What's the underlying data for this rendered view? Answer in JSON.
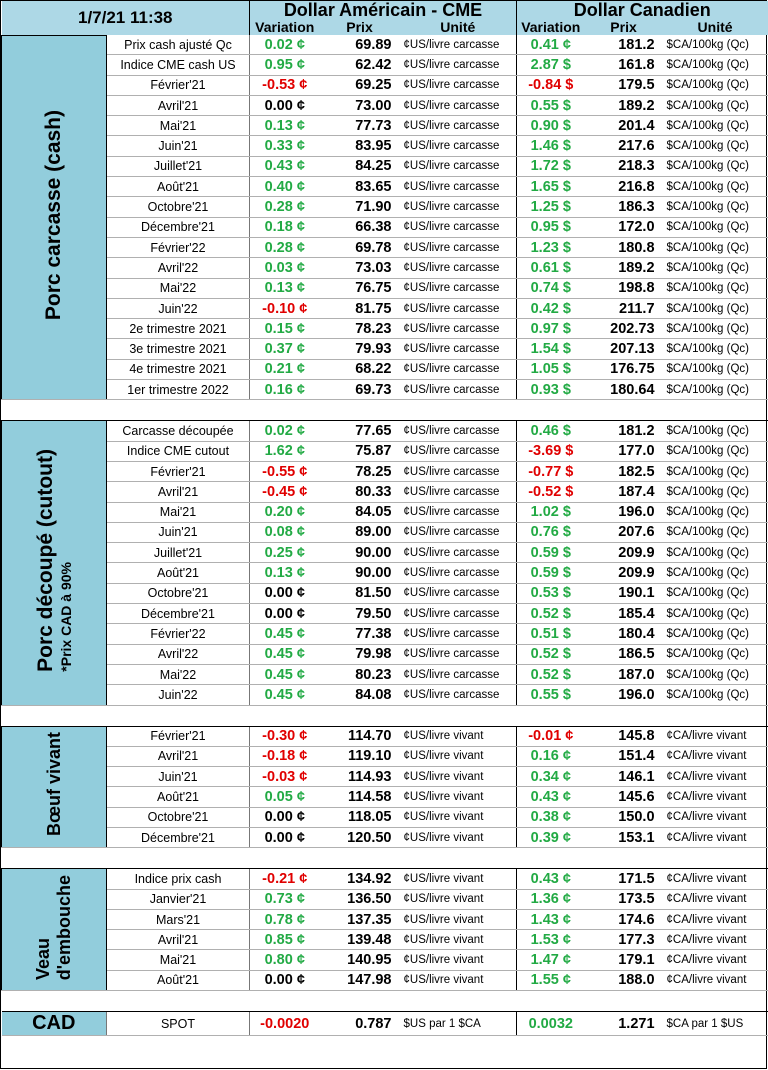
{
  "header": {
    "date": "1/7/21 11:38",
    "usd_title": "Dollar Américain - CME",
    "cad_title": "Dollar Canadien",
    "col_variation": "Variation",
    "col_prix": "Prix",
    "col_unite": "Unité"
  },
  "sections": {
    "carcasse": {
      "title": "Porc carcasse (cash)",
      "rows": [
        {
          "label": "Prix cash ajusté Qc",
          "us_var": "0.02 ¢",
          "us_prix": "69.89",
          "us_unit": "¢US/livre carcasse",
          "ca_var": "0.41 ¢",
          "ca_prix": "181.2",
          "ca_unit": "$CA/100kg (Qc)"
        },
        {
          "label": "Indice CME cash US",
          "us_var": "0.95 ¢",
          "us_prix": "62.42",
          "us_unit": "¢US/livre carcasse",
          "ca_var": "2.87 $",
          "ca_prix": "161.8",
          "ca_unit": "$CA/100kg (Qc)"
        },
        {
          "label": "Février'21",
          "us_var": "-0.53 ¢",
          "us_prix": "69.25",
          "us_unit": "¢US/livre carcasse",
          "ca_var": "-0.84 $",
          "ca_prix": "179.5",
          "ca_unit": "$CA/100kg (Qc)"
        },
        {
          "label": "Avril'21",
          "us_var": "0.00 ¢",
          "us_prix": "73.00",
          "us_unit": "¢US/livre carcasse",
          "ca_var": "0.55 $",
          "ca_prix": "189.2",
          "ca_unit": "$CA/100kg (Qc)"
        },
        {
          "label": "Mai'21",
          "us_var": "0.13 ¢",
          "us_prix": "77.73",
          "us_unit": "¢US/livre carcasse",
          "ca_var": "0.90 $",
          "ca_prix": "201.4",
          "ca_unit": "$CA/100kg (Qc)"
        },
        {
          "label": "Juin'21",
          "us_var": "0.33 ¢",
          "us_prix": "83.95",
          "us_unit": "¢US/livre carcasse",
          "ca_var": "1.46 $",
          "ca_prix": "217.6",
          "ca_unit": "$CA/100kg (Qc)"
        },
        {
          "label": "Juillet'21",
          "us_var": "0.43 ¢",
          "us_prix": "84.25",
          "us_unit": "¢US/livre carcasse",
          "ca_var": "1.72 $",
          "ca_prix": "218.3",
          "ca_unit": "$CA/100kg (Qc)"
        },
        {
          "label": "Août'21",
          "us_var": "0.40 ¢",
          "us_prix": "83.65",
          "us_unit": "¢US/livre carcasse",
          "ca_var": "1.65 $",
          "ca_prix": "216.8",
          "ca_unit": "$CA/100kg (Qc)"
        },
        {
          "label": "Octobre'21",
          "us_var": "0.28 ¢",
          "us_prix": "71.90",
          "us_unit": "¢US/livre carcasse",
          "ca_var": "1.25 $",
          "ca_prix": "186.3",
          "ca_unit": "$CA/100kg (Qc)"
        },
        {
          "label": "Décembre'21",
          "us_var": "0.18 ¢",
          "us_prix": "66.38",
          "us_unit": "¢US/livre carcasse",
          "ca_var": "0.95 $",
          "ca_prix": "172.0",
          "ca_unit": "$CA/100kg (Qc)"
        },
        {
          "label": "Février'22",
          "us_var": "0.28 ¢",
          "us_prix": "69.78",
          "us_unit": "¢US/livre carcasse",
          "ca_var": "1.23 $",
          "ca_prix": "180.8",
          "ca_unit": "$CA/100kg (Qc)"
        },
        {
          "label": "Avril'22",
          "us_var": "0.03 ¢",
          "us_prix": "73.03",
          "us_unit": "¢US/livre carcasse",
          "ca_var": "0.61 $",
          "ca_prix": "189.2",
          "ca_unit": "$CA/100kg (Qc)"
        },
        {
          "label": "Mai'22",
          "us_var": "0.13 ¢",
          "us_prix": "76.75",
          "us_unit": "¢US/livre carcasse",
          "ca_var": "0.74 $",
          "ca_prix": "198.8",
          "ca_unit": "$CA/100kg (Qc)"
        },
        {
          "label": "Juin'22",
          "us_var": "-0.10 ¢",
          "us_prix": "81.75",
          "us_unit": "¢US/livre carcasse",
          "ca_var": "0.42 $",
          "ca_prix": "211.7",
          "ca_unit": "$CA/100kg (Qc)"
        },
        {
          "label": "2e trimestre 2021",
          "us_var": "0.15 ¢",
          "us_prix": "78.23",
          "us_unit": "¢US/livre carcasse",
          "ca_var": "0.97 $",
          "ca_prix": "202.73",
          "ca_unit": "$CA/100kg (Qc)"
        },
        {
          "label": "3e trimestre 2021",
          "us_var": "0.37 ¢",
          "us_prix": "79.93",
          "us_unit": "¢US/livre carcasse",
          "ca_var": "1.54 $",
          "ca_prix": "207.13",
          "ca_unit": "$CA/100kg (Qc)"
        },
        {
          "label": "4e trimestre 2021",
          "us_var": "0.21 ¢",
          "us_prix": "68.22",
          "us_unit": "¢US/livre carcasse",
          "ca_var": "1.05 $",
          "ca_prix": "176.75",
          "ca_unit": "$CA/100kg (Qc)"
        },
        {
          "label": "1er trimestre 2022",
          "us_var": "0.16 ¢",
          "us_prix": "69.73",
          "us_unit": "¢US/livre carcasse",
          "ca_var": "0.93 $",
          "ca_prix": "180.64",
          "ca_unit": "$CA/100kg (Qc)"
        }
      ]
    },
    "cutout": {
      "title": "Porc découpé (cutout)",
      "note": "*Prix CAD à 90%",
      "rows": [
        {
          "label": "Carcasse découpée",
          "us_var": "0.02 ¢",
          "us_prix": "77.65",
          "us_unit": "¢US/livre carcasse",
          "ca_var": "0.46 $",
          "ca_prix": "181.2",
          "ca_unit": "$CA/100kg (Qc)"
        },
        {
          "label": "Indice CME cutout",
          "us_var": "1.62 ¢",
          "us_prix": "75.87",
          "us_unit": "¢US/livre carcasse",
          "ca_var": "-3.69 $",
          "ca_prix": "177.0",
          "ca_unit": "$CA/100kg (Qc)"
        },
        {
          "label": "Février'21",
          "us_var": "-0.55 ¢",
          "us_prix": "78.25",
          "us_unit": "¢US/livre carcasse",
          "ca_var": "-0.77 $",
          "ca_prix": "182.5",
          "ca_unit": "$CA/100kg (Qc)"
        },
        {
          "label": "Avril'21",
          "us_var": "-0.45 ¢",
          "us_prix": "80.33",
          "us_unit": "¢US/livre carcasse",
          "ca_var": "-0.52 $",
          "ca_prix": "187.4",
          "ca_unit": "$CA/100kg (Qc)"
        },
        {
          "label": "Mai'21",
          "us_var": "0.20 ¢",
          "us_prix": "84.05",
          "us_unit": "¢US/livre carcasse",
          "ca_var": "1.02 $",
          "ca_prix": "196.0",
          "ca_unit": "$CA/100kg (Qc)"
        },
        {
          "label": "Juin'21",
          "us_var": "0.08 ¢",
          "us_prix": "89.00",
          "us_unit": "¢US/livre carcasse",
          "ca_var": "0.76 $",
          "ca_prix": "207.6",
          "ca_unit": "$CA/100kg (Qc)"
        },
        {
          "label": "Juillet'21",
          "us_var": "0.25 ¢",
          "us_prix": "90.00",
          "us_unit": "¢US/livre carcasse",
          "ca_var": "0.59 $",
          "ca_prix": "209.9",
          "ca_unit": "$CA/100kg (Qc)"
        },
        {
          "label": "Août'21",
          "us_var": "0.13 ¢",
          "us_prix": "90.00",
          "us_unit": "¢US/livre carcasse",
          "ca_var": "0.59 $",
          "ca_prix": "209.9",
          "ca_unit": "$CA/100kg (Qc)"
        },
        {
          "label": "Octobre'21",
          "us_var": "0.00 ¢",
          "us_prix": "81.50",
          "us_unit": "¢US/livre carcasse",
          "ca_var": "0.53 $",
          "ca_prix": "190.1",
          "ca_unit": "$CA/100kg (Qc)"
        },
        {
          "label": "Décembre'21",
          "us_var": "0.00 ¢",
          "us_prix": "79.50",
          "us_unit": "¢US/livre carcasse",
          "ca_var": "0.52 $",
          "ca_prix": "185.4",
          "ca_unit": "$CA/100kg (Qc)"
        },
        {
          "label": "Février'22",
          "us_var": "0.45 ¢",
          "us_prix": "77.38",
          "us_unit": "¢US/livre carcasse",
          "ca_var": "0.51 $",
          "ca_prix": "180.4",
          "ca_unit": "$CA/100kg (Qc)"
        },
        {
          "label": "Avril'22",
          "us_var": "0.45 ¢",
          "us_prix": "79.98",
          "us_unit": "¢US/livre carcasse",
          "ca_var": "0.52 $",
          "ca_prix": "186.5",
          "ca_unit": "$CA/100kg (Qc)"
        },
        {
          "label": "Mai'22",
          "us_var": "0.45 ¢",
          "us_prix": "80.23",
          "us_unit": "¢US/livre carcasse",
          "ca_var": "0.52 $",
          "ca_prix": "187.0",
          "ca_unit": "$CA/100kg (Qc)"
        },
        {
          "label": "Juin'22",
          "us_var": "0.45 ¢",
          "us_prix": "84.08",
          "us_unit": "¢US/livre carcasse",
          "ca_var": "0.55 $",
          "ca_prix": "196.0",
          "ca_unit": "$CA/100kg (Qc)"
        }
      ]
    },
    "boeuf": {
      "title": "Bœuf vivant",
      "rows": [
        {
          "label": "Février'21",
          "us_var": "-0.30 ¢",
          "us_prix": "114.70",
          "us_unit": "¢US/livre vivant",
          "ca_var": "-0.01 ¢",
          "ca_prix": "145.8",
          "ca_unit": "¢CA/livre vivant"
        },
        {
          "label": "Avril'21",
          "us_var": "-0.18 ¢",
          "us_prix": "119.10",
          "us_unit": "¢US/livre vivant",
          "ca_var": "0.16 ¢",
          "ca_prix": "151.4",
          "ca_unit": "¢CA/livre vivant"
        },
        {
          "label": "Juin'21",
          "us_var": "-0.03 ¢",
          "us_prix": "114.93",
          "us_unit": "¢US/livre vivant",
          "ca_var": "0.34 ¢",
          "ca_prix": "146.1",
          "ca_unit": "¢CA/livre vivant"
        },
        {
          "label": "Août'21",
          "us_var": "0.05 ¢",
          "us_prix": "114.58",
          "us_unit": "¢US/livre vivant",
          "ca_var": "0.43 ¢",
          "ca_prix": "145.6",
          "ca_unit": "¢CA/livre vivant"
        },
        {
          "label": "Octobre'21",
          "us_var": "0.00 ¢",
          "us_prix": "118.05",
          "us_unit": "¢US/livre vivant",
          "ca_var": "0.38 ¢",
          "ca_prix": "150.0",
          "ca_unit": "¢CA/livre vivant"
        },
        {
          "label": "Décembre'21",
          "us_var": "0.00 ¢",
          "us_prix": "120.50",
          "us_unit": "¢US/livre vivant",
          "ca_var": "0.39 ¢",
          "ca_prix": "153.1",
          "ca_unit": "¢CA/livre vivant"
        }
      ]
    },
    "veau": {
      "title_line1": "Veau",
      "title_line2": "d'embouche",
      "rows": [
        {
          "label": "Indice prix cash",
          "us_var": "-0.21 ¢",
          "us_prix": "134.92",
          "us_unit": "¢US/livre vivant",
          "ca_var": "0.43 ¢",
          "ca_prix": "171.5",
          "ca_unit": "¢CA/livre vivant"
        },
        {
          "label": "Janvier'21",
          "us_var": "0.73 ¢",
          "us_prix": "136.50",
          "us_unit": "¢US/livre vivant",
          "ca_var": "1.36 ¢",
          "ca_prix": "173.5",
          "ca_unit": "¢CA/livre vivant"
        },
        {
          "label": "Mars'21",
          "us_var": "0.78 ¢",
          "us_prix": "137.35",
          "us_unit": "¢US/livre vivant",
          "ca_var": "1.43 ¢",
          "ca_prix": "174.6",
          "ca_unit": "¢CA/livre vivant"
        },
        {
          "label": "Avril'21",
          "us_var": "0.85 ¢",
          "us_prix": "139.48",
          "us_unit": "¢US/livre vivant",
          "ca_var": "1.53 ¢",
          "ca_prix": "177.3",
          "ca_unit": "¢CA/livre vivant"
        },
        {
          "label": "Mai'21",
          "us_var": "0.80 ¢",
          "us_prix": "140.95",
          "us_unit": "¢US/livre vivant",
          "ca_var": "1.47 ¢",
          "ca_prix": "179.1",
          "ca_unit": "¢CA/livre vivant"
        },
        {
          "label": "Août'21",
          "us_var": "0.00 ¢",
          "us_prix": "147.98",
          "us_unit": "¢US/livre vivant",
          "ca_var": "1.55 ¢",
          "ca_prix": "188.0",
          "ca_unit": "¢CA/livre vivant"
        }
      ]
    },
    "cad": {
      "title": "CAD",
      "label": "SPOT",
      "us_var": "-0.0020",
      "us_prix": "0.787",
      "us_unit": "$US par 1 $CA",
      "ca_var": "0.0032",
      "ca_prix": "1.271",
      "ca_unit": "$CA par 1 $US"
    }
  },
  "colors": {
    "positive": "#22aa44",
    "negative": "#e00000",
    "header_bg": "#add8e6",
    "side_bg": "#92cddc"
  }
}
